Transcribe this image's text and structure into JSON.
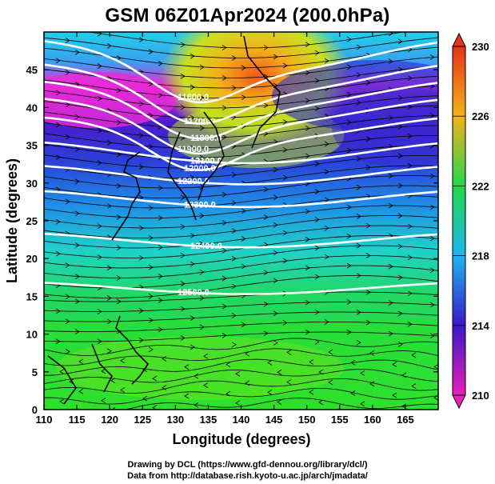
{
  "title": "GSM 06Z01Apr2024 (200.0hPa)",
  "axes": {
    "xlabel": "Longitude (degrees)",
    "ylabel": "Latitude  (degrees)",
    "xticks": [
      "110",
      "115",
      "120",
      "125",
      "130",
      "135",
      "140",
      "145",
      "150",
      "155",
      "160",
      "165"
    ],
    "yticks": [
      "0",
      "5",
      "10",
      "15",
      "20",
      "25",
      "30",
      "35",
      "40",
      "45"
    ]
  },
  "colorbar": {
    "ticks": [
      "210",
      "214",
      "218",
      "222",
      "226",
      "230"
    ],
    "colors": [
      "#e81fb9",
      "#3a19c8",
      "#1fb4f0",
      "#22d84a",
      "#f2b21a",
      "#e8321a"
    ]
  },
  "contour_labels": [
    "11600.0",
    "11700.0",
    "11800.0",
    "11900.0",
    "12000.0",
    "12100.0",
    "12200.0",
    "12300.0",
    "12400.0",
    "12500.0"
  ],
  "credits": {
    "line1": "Drawing by DCL (https://www.gfd-dennou.org/library/dcl/)",
    "line2": "Data from http://database.rish.kyoto-u.ac.jp/arch/jmadata/"
  }
}
